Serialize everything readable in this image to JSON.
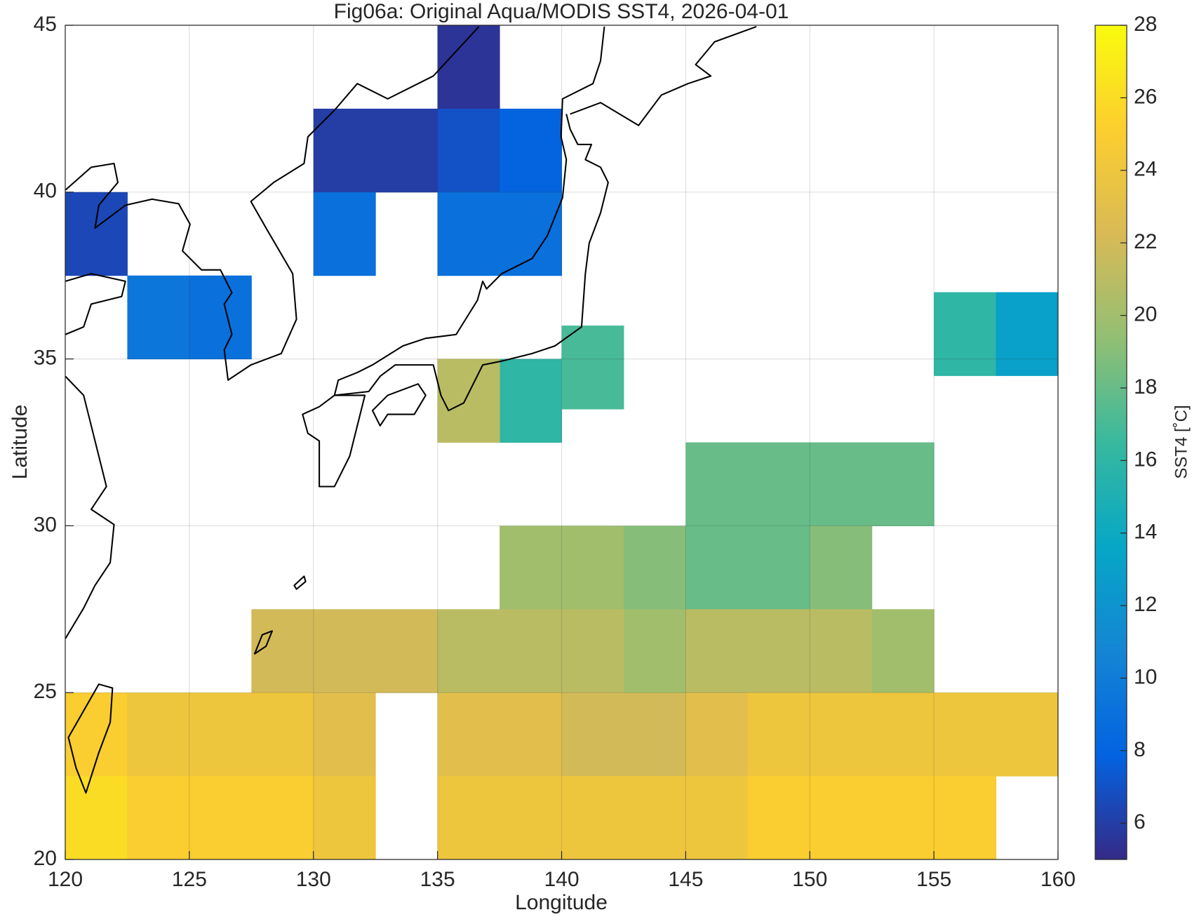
{
  "chart_data": {
    "type": "heatmap",
    "title": "Fig06a: Original Aqua/MODIS SST4, 2026-04-01",
    "x_label": "Longitude",
    "y_label": "Latitude",
    "colorbar_label": "SST4  [˚C]",
    "xlim": [
      120,
      160
    ],
    "xticks": [
      120,
      125,
      130,
      135,
      140,
      145,
      150,
      155,
      160
    ],
    "ylim": [
      20,
      45
    ],
    "yticks": [
      20,
      25,
      30,
      35,
      40,
      45
    ],
    "clim": [
      5,
      28
    ],
    "cticks": [
      6,
      8,
      10,
      12,
      14,
      16,
      18,
      20,
      22,
      24,
      26,
      28
    ],
    "grid": true,
    "colormap": [
      "#352a87",
      "#0363e1",
      "#1485d4",
      "#06a7c6",
      "#38b99e",
      "#92bf73",
      "#d9ba56",
      "#fcce2e",
      "#f9fb0e"
    ],
    "x": [
      136.25,
      131.25,
      133.75,
      136.25,
      138.75,
      131.25,
      136.25,
      138.75,
      121.25,
      126.25,
      123.75,
      138.75,
      141.25,
      136.25,
      156.25,
      158.75,
      146.25,
      148.75,
      151.25,
      153.75,
      138.75,
      141.25,
      143.75,
      146.25,
      148.75,
      151.25,
      128.75,
      131.25,
      133.75,
      136.25,
      138.75,
      141.25,
      143.75,
      146.25,
      148.75,
      151.25,
      153.75,
      121.25,
      123.75,
      126.25,
      128.75,
      131.25,
      136.25,
      138.75,
      141.25,
      143.75,
      146.25,
      148.75,
      151.25,
      153.75,
      156.25,
      158.75,
      121.25,
      123.75,
      126.25,
      128.75,
      131.25,
      136.25,
      138.75,
      141.25,
      143.75,
      146.25,
      148.75,
      151.25,
      153.75,
      156.25
    ],
    "y": [
      43.75,
      41.25,
      41.25,
      41.25,
      41.25,
      38.75,
      38.75,
      38.75,
      38.75,
      36.25,
      36.25,
      33.75,
      34.75,
      33.75,
      35.75,
      35.75,
      31.25,
      31.25,
      31.25,
      31.25,
      28.75,
      28.75,
      28.75,
      28.75,
      28.75,
      28.75,
      26.25,
      26.25,
      26.25,
      26.25,
      26.25,
      26.25,
      26.25,
      26.25,
      26.25,
      26.25,
      26.25,
      23.75,
      23.75,
      23.75,
      23.75,
      23.75,
      23.75,
      23.75,
      23.75,
      23.75,
      23.75,
      23.75,
      23.75,
      23.75,
      23.75,
      23.75,
      21.25,
      21.25,
      21.25,
      21.25,
      21.25,
      21.25,
      21.25,
      21.25,
      21.25,
      21.25,
      21.25,
      21.25,
      21.25,
      21.25
    ],
    "values": [
      5.5,
      6,
      6,
      7,
      8,
      9,
      9,
      9,
      6.5,
      9,
      9.5,
      16,
      17,
      21,
      16,
      13,
      18,
      18,
      18,
      18,
      20,
      20,
      19,
      18,
      18,
      19,
      22,
      22,
      22,
      21,
      21,
      21,
      20,
      21,
      21,
      21,
      20,
      25,
      24,
      24,
      24,
      23,
      23,
      23,
      22,
      22,
      23,
      24,
      24,
      24,
      24,
      24,
      26,
      25,
      25,
      25,
      24,
      24,
      24,
      24,
      24,
      24,
      25,
      25,
      25,
      25
    ]
  }
}
